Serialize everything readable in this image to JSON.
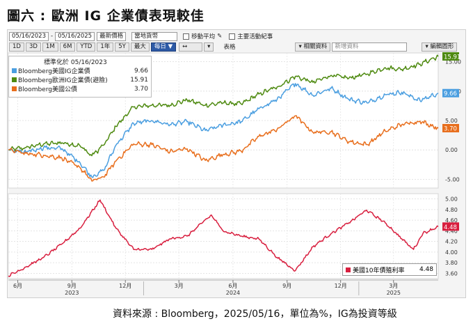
{
  "title": "圖六 : 歐洲 IG 企業債表現較佳",
  "source": "資料來源 : Bloomberg，2025/05/16，單位為%，IG為投資等級",
  "toolbar": {
    "start_date": "05/16/2023",
    "end_date": "05/16/2025",
    "price_type": "最新價格",
    "currency": "當地貨幣",
    "moving_avg": "移動平均",
    "key_events": "主要活動紀事",
    "periods": [
      "1D",
      "3D",
      "1M",
      "6M",
      "YTD",
      "1年",
      "5Y",
      "最大"
    ],
    "frequency": "每日",
    "table": "表格",
    "related": "相關資料",
    "new_data": "新增資料",
    "edit_chart": "編輯圖形"
  },
  "legend_top": {
    "header": "標準化於 05/16/2023",
    "items": [
      {
        "label": "Bloomberg美國IG企業債",
        "value": "9.66",
        "color": "#4a9ee0"
      },
      {
        "label": "Bloomberg歐洲IG企業債(避險)",
        "value": "15.91",
        "color": "#4e8a10"
      },
      {
        "label": "Bloomberg美國公債",
        "value": "3.70",
        "color": "#e86e1c"
      }
    ]
  },
  "legend_bottom": {
    "label": "美國10年債殖利率",
    "value": "4.48",
    "color": "#d81e3e"
  },
  "chart_data": [
    {
      "type": "line",
      "title": "",
      "x_range": [
        "2023-05-16",
        "2025-05-16"
      ],
      "ylim": [
        -6.5,
        16.5
      ],
      "yticks": [
        "15.00",
        "10.00",
        "5.00",
        "0.00",
        "-5.00"
      ],
      "y_tick_values": [
        15,
        10,
        5,
        0,
        -5
      ],
      "series": [
        {
          "name": "Bloomberg歐洲IG企業債(避險)",
          "color": "#4e8a10",
          "last_label": "15.91",
          "x": [
            "2023-05-16",
            "2023-06-15",
            "2023-07-15",
            "2023-08-15",
            "2023-09-15",
            "2023-10-05",
            "2023-10-25",
            "2023-11-15",
            "2023-12-15",
            "2024-01-15",
            "2024-02-15",
            "2024-03-15",
            "2024-04-15",
            "2024-05-15",
            "2024-06-15",
            "2024-07-15",
            "2024-08-15",
            "2024-09-15",
            "2024-10-15",
            "2024-11-15",
            "2024-12-15",
            "2025-01-15",
            "2025-02-15",
            "2025-03-15",
            "2025-04-15",
            "2025-05-16"
          ],
          "values": [
            0,
            0.4,
            1.0,
            1.2,
            0.7,
            -1.0,
            0.8,
            4.0,
            7.3,
            7.6,
            7.6,
            8.5,
            7.6,
            8.0,
            7.8,
            9.5,
            10.7,
            12.5,
            11.5,
            12.7,
            12.2,
            12.9,
            14.0,
            13.7,
            14.6,
            15.91
          ]
        },
        {
          "name": "Bloomberg美國IG企業債",
          "color": "#4a9ee0",
          "last_label": "9.66",
          "x": [
            "2023-05-16",
            "2023-06-15",
            "2023-07-15",
            "2023-08-15",
            "2023-09-15",
            "2023-10-05",
            "2023-10-25",
            "2023-11-15",
            "2023-12-15",
            "2024-01-15",
            "2024-02-15",
            "2024-03-15",
            "2024-04-15",
            "2024-05-15",
            "2024-06-15",
            "2024-07-15",
            "2024-08-15",
            "2024-09-15",
            "2024-10-15",
            "2024-11-15",
            "2024-12-15",
            "2025-01-15",
            "2025-02-15",
            "2025-03-15",
            "2025-04-15",
            "2025-05-16"
          ],
          "values": [
            0,
            -0.4,
            0.4,
            0.2,
            -2.2,
            -4.6,
            -3.5,
            0.8,
            4.5,
            5.0,
            4.3,
            4.8,
            3.3,
            4.2,
            4.8,
            7.0,
            8.6,
            11.3,
            9.3,
            10.5,
            8.6,
            8.0,
            9.4,
            9.8,
            8.4,
            9.66
          ]
        },
        {
          "name": "Bloomberg美國公債",
          "color": "#e86e1c",
          "last_label": "3.70",
          "x": [
            "2023-05-16",
            "2023-06-15",
            "2023-07-15",
            "2023-08-15",
            "2023-09-15",
            "2023-10-05",
            "2023-10-25",
            "2023-11-15",
            "2023-12-15",
            "2024-01-15",
            "2024-02-15",
            "2024-03-15",
            "2024-04-15",
            "2024-05-15",
            "2024-06-15",
            "2024-07-15",
            "2024-08-15",
            "2024-09-15",
            "2024-10-15",
            "2024-11-15",
            "2024-12-15",
            "2025-01-15",
            "2025-02-15",
            "2025-03-15",
            "2025-04-15",
            "2025-05-16"
          ],
          "values": [
            0,
            -0.6,
            -0.9,
            -1.4,
            -3.0,
            -5.3,
            -4.6,
            -1.9,
            1.0,
            0.9,
            -0.3,
            0.2,
            -1.8,
            -0.8,
            -0.2,
            2.3,
            3.5,
            5.8,
            3.0,
            3.1,
            1.4,
            0.9,
            3.2,
            4.3,
            4.9,
            3.7
          ]
        }
      ]
    },
    {
      "type": "line",
      "title": "",
      "x_range": [
        "2023-05-16",
        "2025-05-16"
      ],
      "ylim": [
        3.5,
        5.1
      ],
      "yticks": [
        "5.00",
        "4.80",
        "4.60",
        "4.40",
        "4.20",
        "4.00",
        "3.80",
        "3.60"
      ],
      "y_tick_values": [
        5.0,
        4.8,
        4.6,
        4.4,
        4.2,
        4.0,
        3.8,
        3.6
      ],
      "series": [
        {
          "name": "美國10年債殖利率",
          "color": "#d81e3e",
          "last_label": "4.48",
          "x": [
            "2023-05-16",
            "2023-06-15",
            "2023-07-15",
            "2023-08-15",
            "2023-09-15",
            "2023-10-19",
            "2023-11-15",
            "2023-12-15",
            "2024-01-15",
            "2024-02-15",
            "2024-03-15",
            "2024-04-25",
            "2024-05-15",
            "2024-06-15",
            "2024-07-15",
            "2024-08-15",
            "2024-09-15",
            "2024-10-15",
            "2024-11-15",
            "2024-12-15",
            "2025-01-14",
            "2025-02-15",
            "2025-03-15",
            "2025-04-04",
            "2025-04-20",
            "2025-05-16"
          ],
          "values": [
            3.55,
            3.72,
            3.9,
            4.15,
            4.45,
            4.98,
            4.45,
            4.05,
            4.05,
            4.25,
            4.3,
            4.7,
            4.4,
            4.3,
            4.25,
            3.9,
            3.65,
            4.1,
            4.35,
            4.55,
            4.79,
            4.55,
            4.25,
            4.05,
            4.35,
            4.48
          ]
        }
      ]
    }
  ],
  "x_axis": {
    "ticks": [
      {
        "date": "2023-06-01",
        "label": "6月"
      },
      {
        "date": "2023-09-01",
        "label": "9月"
      },
      {
        "date": "2023-12-01",
        "label": "12月"
      },
      {
        "date": "2024-03-01",
        "label": "3月"
      },
      {
        "date": "2024-06-01",
        "label": "6月"
      },
      {
        "date": "2024-09-01",
        "label": "9月"
      },
      {
        "date": "2024-12-01",
        "label": "12月"
      },
      {
        "date": "2025-03-01",
        "label": "3月"
      }
    ],
    "years": [
      {
        "date": "2023-09-01",
        "label": "2023"
      },
      {
        "date": "2024-06-01",
        "label": "2024"
      },
      {
        "date": "2025-03-01",
        "label": "2025"
      }
    ]
  }
}
